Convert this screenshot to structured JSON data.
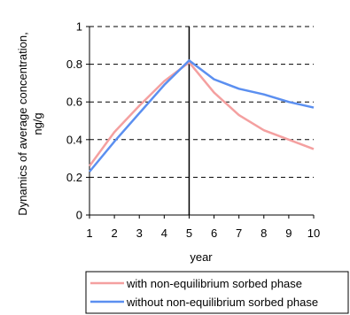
{
  "chart_data": {
    "type": "line",
    "title": "",
    "xlabel": "year",
    "ylabel": "Dynamics of average concentration, ng/g",
    "ylabel_lines": [
      "Dynamics of average concentration,",
      "ng/g"
    ],
    "x": [
      1,
      2,
      3,
      4,
      5,
      6,
      7,
      8,
      9,
      10
    ],
    "xlim": [
      1,
      10
    ],
    "ylim": [
      0,
      1
    ],
    "x_ticks": [
      "1",
      "2",
      "3",
      "4",
      "5",
      "6",
      "7",
      "8",
      "9",
      "10"
    ],
    "y_ticks": [
      "0",
      "0.2",
      "0.4",
      "0.6",
      "0.8",
      "1"
    ],
    "grid": "horizontal dashed",
    "vertical_marker_x": 5,
    "legend_position": "bottom",
    "series": [
      {
        "name": "with non-equilibrium sorbed phase",
        "color": "#f4a0a0",
        "values": [
          0.26,
          0.44,
          0.58,
          0.71,
          0.81,
          0.65,
          0.53,
          0.45,
          0.4,
          0.35
        ]
      },
      {
        "name": "without non-equilibrium sorbed phase",
        "color": "#5b8ff0",
        "values": [
          0.23,
          0.39,
          0.54,
          0.69,
          0.82,
          0.72,
          0.67,
          0.64,
          0.6,
          0.57
        ]
      }
    ]
  }
}
